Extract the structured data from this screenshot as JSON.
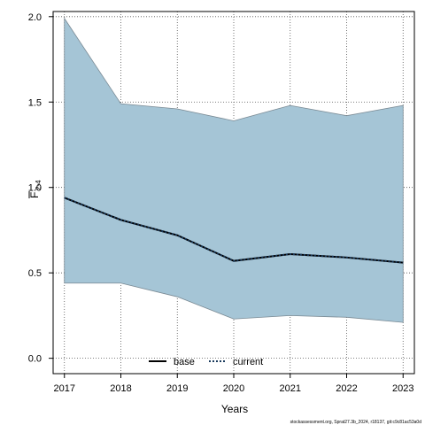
{
  "chart_data": {
    "type": "area",
    "x": [
      2017,
      2018,
      2019,
      2020,
      2021,
      2022,
      2023
    ],
    "xlabel": "Years",
    "ylabel_main": "F",
    "ylabel_sub": "2-4",
    "ylim": [
      0.0,
      2.0
    ],
    "yticks": [
      "0.0",
      "0.5",
      "1.0",
      "1.5",
      "2.0"
    ],
    "xticks": [
      "2017",
      "2018",
      "2019",
      "2020",
      "2021",
      "2022",
      "2023"
    ],
    "grid": true,
    "band": {
      "lower": [
        0.44,
        0.44,
        0.36,
        0.23,
        0.25,
        0.24,
        0.21
      ],
      "upper": [
        1.99,
        1.49,
        1.46,
        1.39,
        1.48,
        1.42,
        1.48
      ],
      "color": "#a5c5d6",
      "edge_color": "#7a8a94"
    },
    "series": [
      {
        "name": "base",
        "values": [
          0.94,
          0.81,
          0.72,
          0.57,
          0.61,
          0.59,
          0.56
        ],
        "color": "#000000",
        "style": "solid"
      },
      {
        "name": "current",
        "values": [
          0.94,
          0.81,
          0.72,
          0.57,
          0.61,
          0.59,
          0.56
        ],
        "color": "#1a3a5c",
        "style": "dotted"
      }
    ],
    "legend": {
      "placement": "bottom-center",
      "labels": [
        "base",
        "current"
      ]
    },
    "footnote": "stockassessment.org, Sprat27.3b_2024, r18137, git:c9c81ac53a0d"
  }
}
